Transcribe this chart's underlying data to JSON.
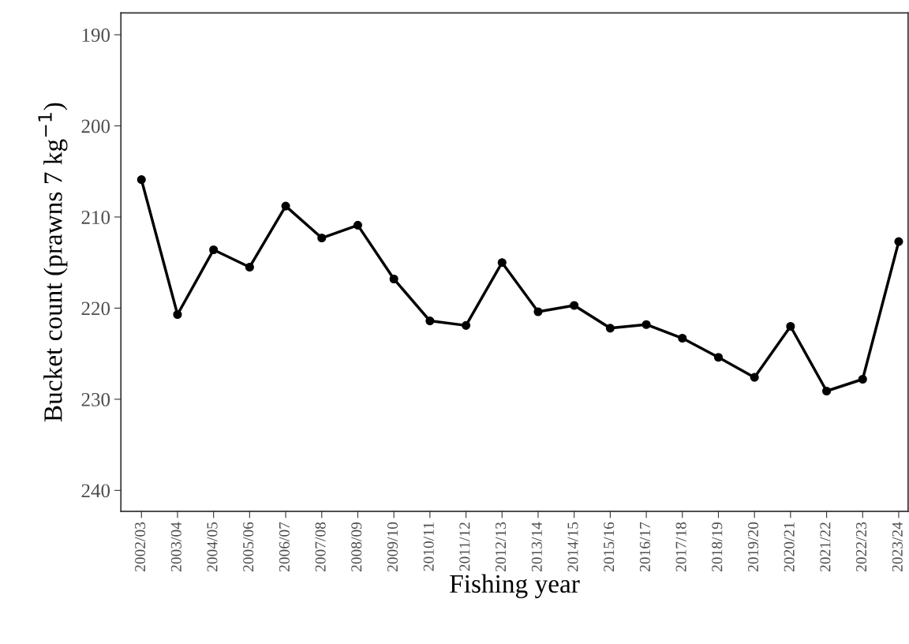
{
  "chart_data": {
    "type": "line",
    "xlabel": "Fishing year",
    "ylabel": "Bucket count (prawns 7 kg$^{−1}$)",
    "categories": [
      "2002/03",
      "2003/04",
      "2004/05",
      "2005/06",
      "2006/07",
      "2007/08",
      "2008/09",
      "2009/10",
      "2010/11",
      "2011/12",
      "2012/13",
      "2013/14",
      "2014/15",
      "2015/16",
      "2016/17",
      "2017/18",
      "2018/19",
      "2019/20",
      "2020/21",
      "2021/22",
      "2022/23",
      "2023/24"
    ],
    "series": [
      {
        "color": "#000000",
        "values": [
          205.9,
          220.7,
          213.6,
          215.5,
          208.8,
          212.3,
          210.9,
          216.8,
          221.4,
          221.9,
          215.0,
          220.4,
          219.7,
          222.2,
          221.8,
          223.3,
          225.4,
          227.6,
          222.0,
          229.1,
          227.8,
          212.7
        ]
      }
    ],
    "ylim": [
      242.3,
      187.6
    ],
    "yticks": [
      190,
      200,
      210,
      220,
      230,
      240
    ],
    "grid": false,
    "legend": false,
    "marker": "circle",
    "line_style": "solid"
  }
}
